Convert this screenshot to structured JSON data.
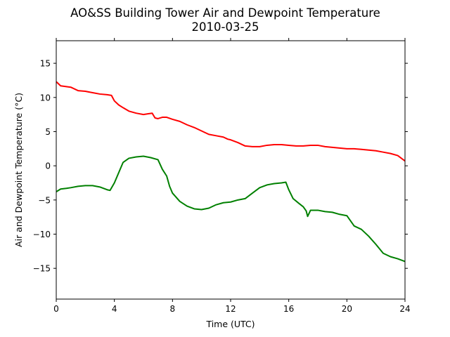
{
  "chart_data": {
    "type": "line",
    "title": "AO&SS Building Tower Air and Dewpoint Temperature",
    "subtitle": "2010-03-25",
    "xlabel": "Time (UTC)",
    "ylabel": "Air and Dewpoint Temperature (°C)",
    "xlim": [
      0,
      24
    ],
    "ylim": [
      -19.5,
      18.3
    ],
    "xticks": [
      0,
      4,
      8,
      12,
      16,
      20,
      24
    ],
    "yticks": [
      -15,
      -10,
      -5,
      0,
      5,
      10,
      15
    ],
    "grid": false,
    "legend": "none",
    "series": [
      {
        "color": "#ff0000",
        "x": [
          0,
          0.3,
          1,
          1.5,
          2,
          2.5,
          3,
          3.5,
          3.8,
          4,
          4.3,
          4.6,
          5,
          5.5,
          6,
          6.3,
          6.6,
          6.8,
          7,
          7.3,
          7.6,
          8,
          8.5,
          9,
          9.5,
          10,
          10.5,
          11,
          11.5,
          11.8,
          12,
          12.5,
          13,
          13.5,
          14,
          14.5,
          15,
          15.5,
          16,
          16.5,
          17,
          17.5,
          18,
          18.5,
          19,
          19.5,
          20,
          20.5,
          21,
          21.5,
          22,
          22.5,
          23,
          23.5,
          24
        ],
        "y": [
          12.3,
          11.7,
          11.5,
          11.0,
          10.9,
          10.7,
          10.5,
          10.4,
          10.3,
          9.5,
          8.9,
          8.5,
          8.0,
          7.7,
          7.5,
          7.6,
          7.7,
          7.0,
          6.9,
          7.1,
          7.1,
          6.8,
          6.5,
          6.0,
          5.6,
          5.1,
          4.6,
          4.4,
          4.2,
          3.9,
          3.8,
          3.4,
          2.9,
          2.8,
          2.8,
          3.0,
          3.1,
          3.1,
          3.0,
          2.9,
          2.9,
          3.0,
          3.0,
          2.8,
          2.7,
          2.6,
          2.5,
          2.5,
          2.4,
          2.3,
          2.2,
          2.0,
          1.8,
          1.5,
          0.7
        ]
      },
      {
        "color": "#008000",
        "x": [
          0,
          0.3,
          0.7,
          1,
          1.5,
          2,
          2.5,
          3,
          3.5,
          3.7,
          4,
          4.3,
          4.6,
          5,
          5.5,
          6,
          6.5,
          7,
          7.3,
          7.6,
          7.8,
          8,
          8.5,
          9,
          9.5,
          10,
          10.5,
          11,
          11.5,
          12,
          12.5,
          13,
          13.5,
          14,
          14.5,
          15,
          15.5,
          15.8,
          16,
          16.3,
          16.7,
          17,
          17.2,
          17.3,
          17.5,
          18,
          18.5,
          19,
          19.5,
          20,
          20.5,
          21,
          21.5,
          22,
          22.5,
          23,
          23.5,
          24
        ],
        "y": [
          -3.8,
          -3.4,
          -3.3,
          -3.2,
          -3.0,
          -2.9,
          -2.9,
          -3.1,
          -3.5,
          -3.6,
          -2.5,
          -1.0,
          0.5,
          1.1,
          1.3,
          1.4,
          1.2,
          0.9,
          -0.5,
          -1.5,
          -3.0,
          -4.0,
          -5.2,
          -5.9,
          -6.3,
          -6.4,
          -6.2,
          -5.7,
          -5.4,
          -5.3,
          -5.0,
          -4.8,
          -4.0,
          -3.2,
          -2.8,
          -2.6,
          -2.5,
          -2.4,
          -3.5,
          -4.8,
          -5.5,
          -6.0,
          -6.6,
          -7.4,
          -6.5,
          -6.5,
          -6.7,
          -6.8,
          -7.1,
          -7.3,
          -8.8,
          -9.3,
          -10.3,
          -11.5,
          -12.8,
          -13.3,
          -13.6,
          -14.0
        ]
      }
    ]
  }
}
